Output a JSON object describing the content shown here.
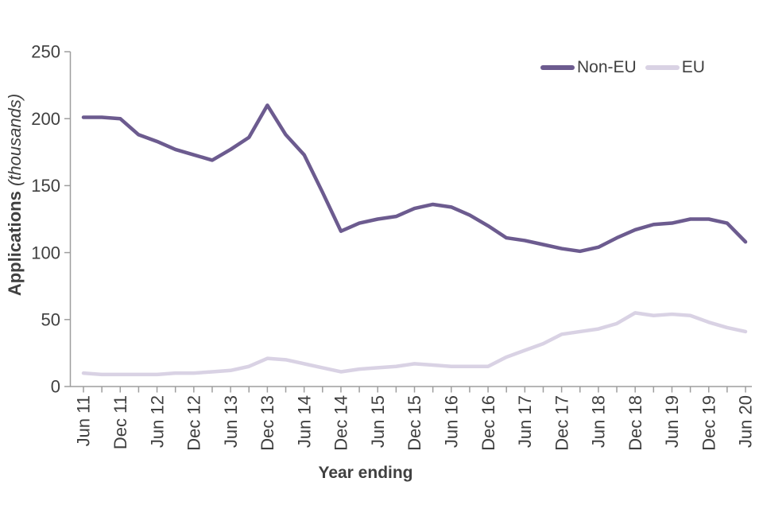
{
  "colors": {
    "text": "#404040",
    "axis": "#9e9e9e",
    "non_eu_line": "#6c5b8f",
    "eu_line": "#d9d2e4"
  },
  "axes": {
    "x_title": "Year ending",
    "y_title_bold": "Applications",
    "y_title_italic": "(thousands)"
  },
  "chart_data": {
    "type": "line",
    "title": "",
    "xlabel": "Year ending",
    "ylabel": "Applications (thousands)",
    "ylim": [
      0,
      250
    ],
    "grid": false,
    "legend_position": "top-right",
    "y_ticks": [
      0,
      50,
      100,
      150,
      200,
      250
    ],
    "x_quarters": [
      "Jun 11",
      "Sep 11",
      "Dec 11",
      "Mar 12",
      "Jun 12",
      "Sep 12",
      "Dec 12",
      "Mar 13",
      "Jun 13",
      "Sep 13",
      "Dec 13",
      "Mar 14",
      "Jun 14",
      "Sep 14",
      "Dec 14",
      "Mar 15",
      "Jun 15",
      "Sep 15",
      "Dec 15",
      "Mar 16",
      "Jun 16",
      "Sep 16",
      "Dec 16",
      "Mar 17",
      "Jun 17",
      "Sep 17",
      "Dec 17",
      "Mar 18",
      "Jun 18",
      "Sep 18",
      "Dec 18",
      "Mar 19",
      "Jun 19",
      "Sep 19",
      "Dec 19",
      "Mar 20",
      "Jun 20"
    ],
    "x_tick_labels_shown": [
      "Jun 11",
      "Dec 11",
      "Jun 12",
      "Dec 12",
      "Jun 13",
      "Dec 13",
      "Jun 14",
      "Dec 14",
      "Jun 15",
      "Dec 15",
      "Jun 16",
      "Dec 16",
      "Jun 17",
      "Dec 17",
      "Jun 18",
      "Dec 18",
      "Jun 19",
      "Dec 19",
      "Jun 20"
    ],
    "series": [
      {
        "name": "Non-EU",
        "color": "#6c5b8f",
        "values": [
          201,
          201,
          200,
          188,
          183,
          177,
          173,
          169,
          177,
          186,
          210,
          188,
          173,
          145,
          116,
          122,
          125,
          127,
          133,
          136,
          134,
          128,
          120,
          111,
          109,
          106,
          103,
          101,
          104,
          111,
          117,
          121,
          122,
          125,
          125,
          122,
          108
        ]
      },
      {
        "name": "EU",
        "color": "#d9d2e4",
        "values": [
          10,
          9,
          9,
          9,
          9,
          10,
          10,
          11,
          12,
          15,
          21,
          20,
          17,
          14,
          11,
          13,
          14,
          15,
          17,
          16,
          15,
          15,
          15,
          22,
          27,
          32,
          39,
          41,
          43,
          47,
          55,
          53,
          54,
          53,
          48,
          44,
          41
        ]
      }
    ]
  }
}
